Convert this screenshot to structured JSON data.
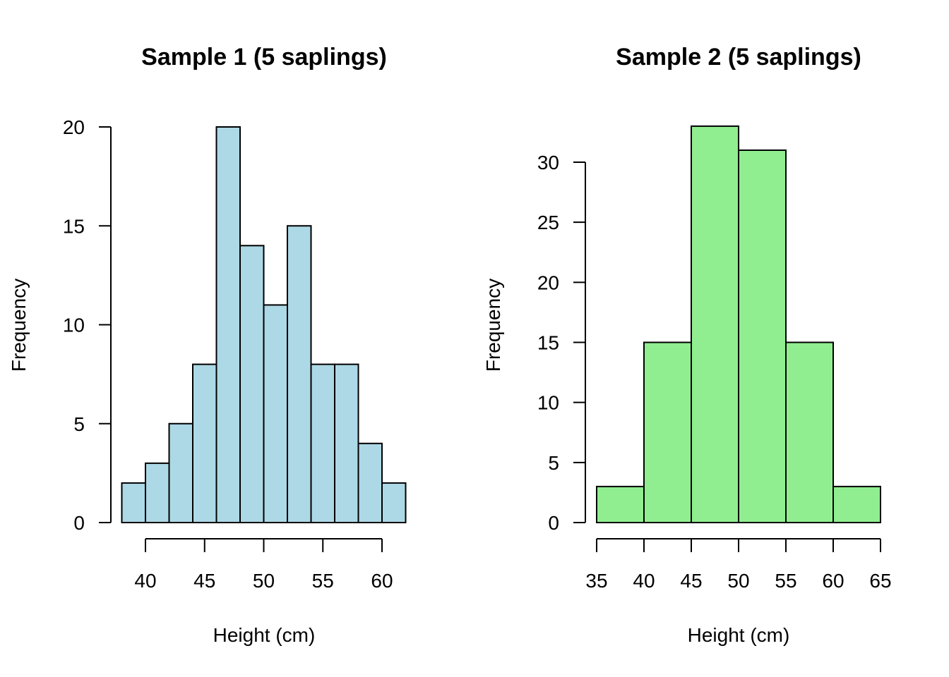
{
  "chart_data": [
    {
      "type": "bar",
      "subtype": "histogram",
      "title": "Sample 1 (5 saplings)",
      "xlabel": "Height (cm)",
      "ylabel": "Frequency",
      "bin_edges": [
        38,
        40,
        42,
        44,
        46,
        48,
        50,
        52,
        54,
        56,
        58,
        60,
        62
      ],
      "values": [
        2,
        3,
        5,
        8,
        20,
        14,
        11,
        15,
        8,
        8,
        4,
        2
      ],
      "fill_color": "#ADD8E6",
      "xticks": [
        40,
        45,
        50,
        55,
        60
      ],
      "yticks": [
        0,
        5,
        10,
        15,
        20
      ],
      "xlim": [
        38,
        62
      ],
      "ylim": [
        0,
        20
      ],
      "grid": false
    },
    {
      "type": "bar",
      "subtype": "histogram",
      "title": "Sample 2 (5 saplings)",
      "xlabel": "Height (cm)",
      "ylabel": "Frequency",
      "bin_edges": [
        35,
        40,
        45,
        50,
        55,
        60,
        65
      ],
      "values": [
        3,
        15,
        33,
        31,
        15,
        3
      ],
      "fill_color": "#90EE90",
      "xticks": [
        35,
        40,
        45,
        50,
        55,
        60,
        65
      ],
      "yticks": [
        0,
        5,
        10,
        15,
        20,
        25,
        30
      ],
      "xlim": [
        35,
        65
      ],
      "ylim": [
        0,
        33
      ],
      "grid": false
    }
  ]
}
